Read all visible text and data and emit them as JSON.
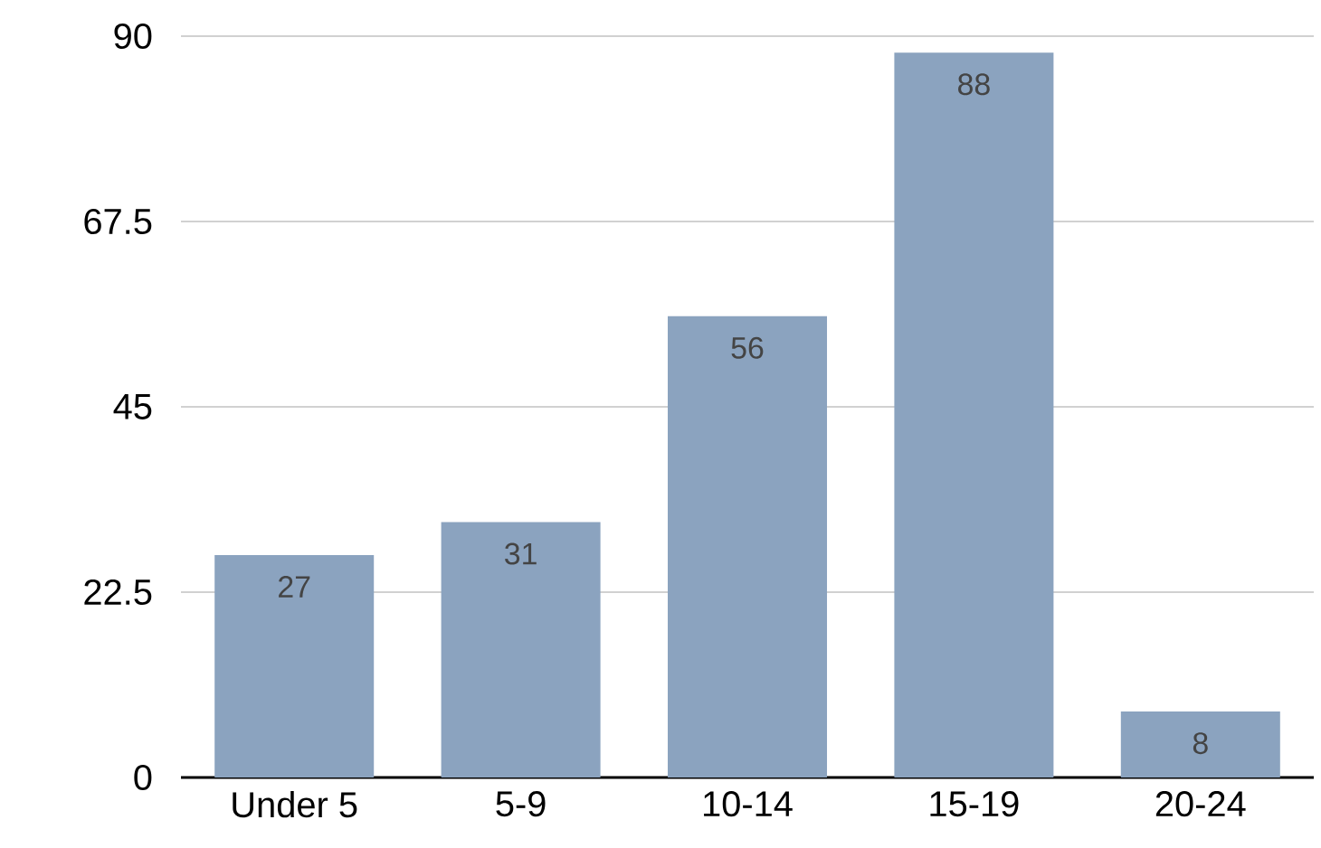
{
  "chart_data": {
    "type": "bar",
    "categories": [
      "Under 5",
      "5-9",
      "10-14",
      "15-19",
      "20-24"
    ],
    "values": [
      27,
      31,
      56,
      88,
      8
    ],
    "color": "#8ba3bf",
    "ylim": [
      0,
      90
    ],
    "yticks": [
      0,
      22.5,
      45,
      67.5,
      90
    ],
    "grid": "y",
    "data_labels": true
  }
}
